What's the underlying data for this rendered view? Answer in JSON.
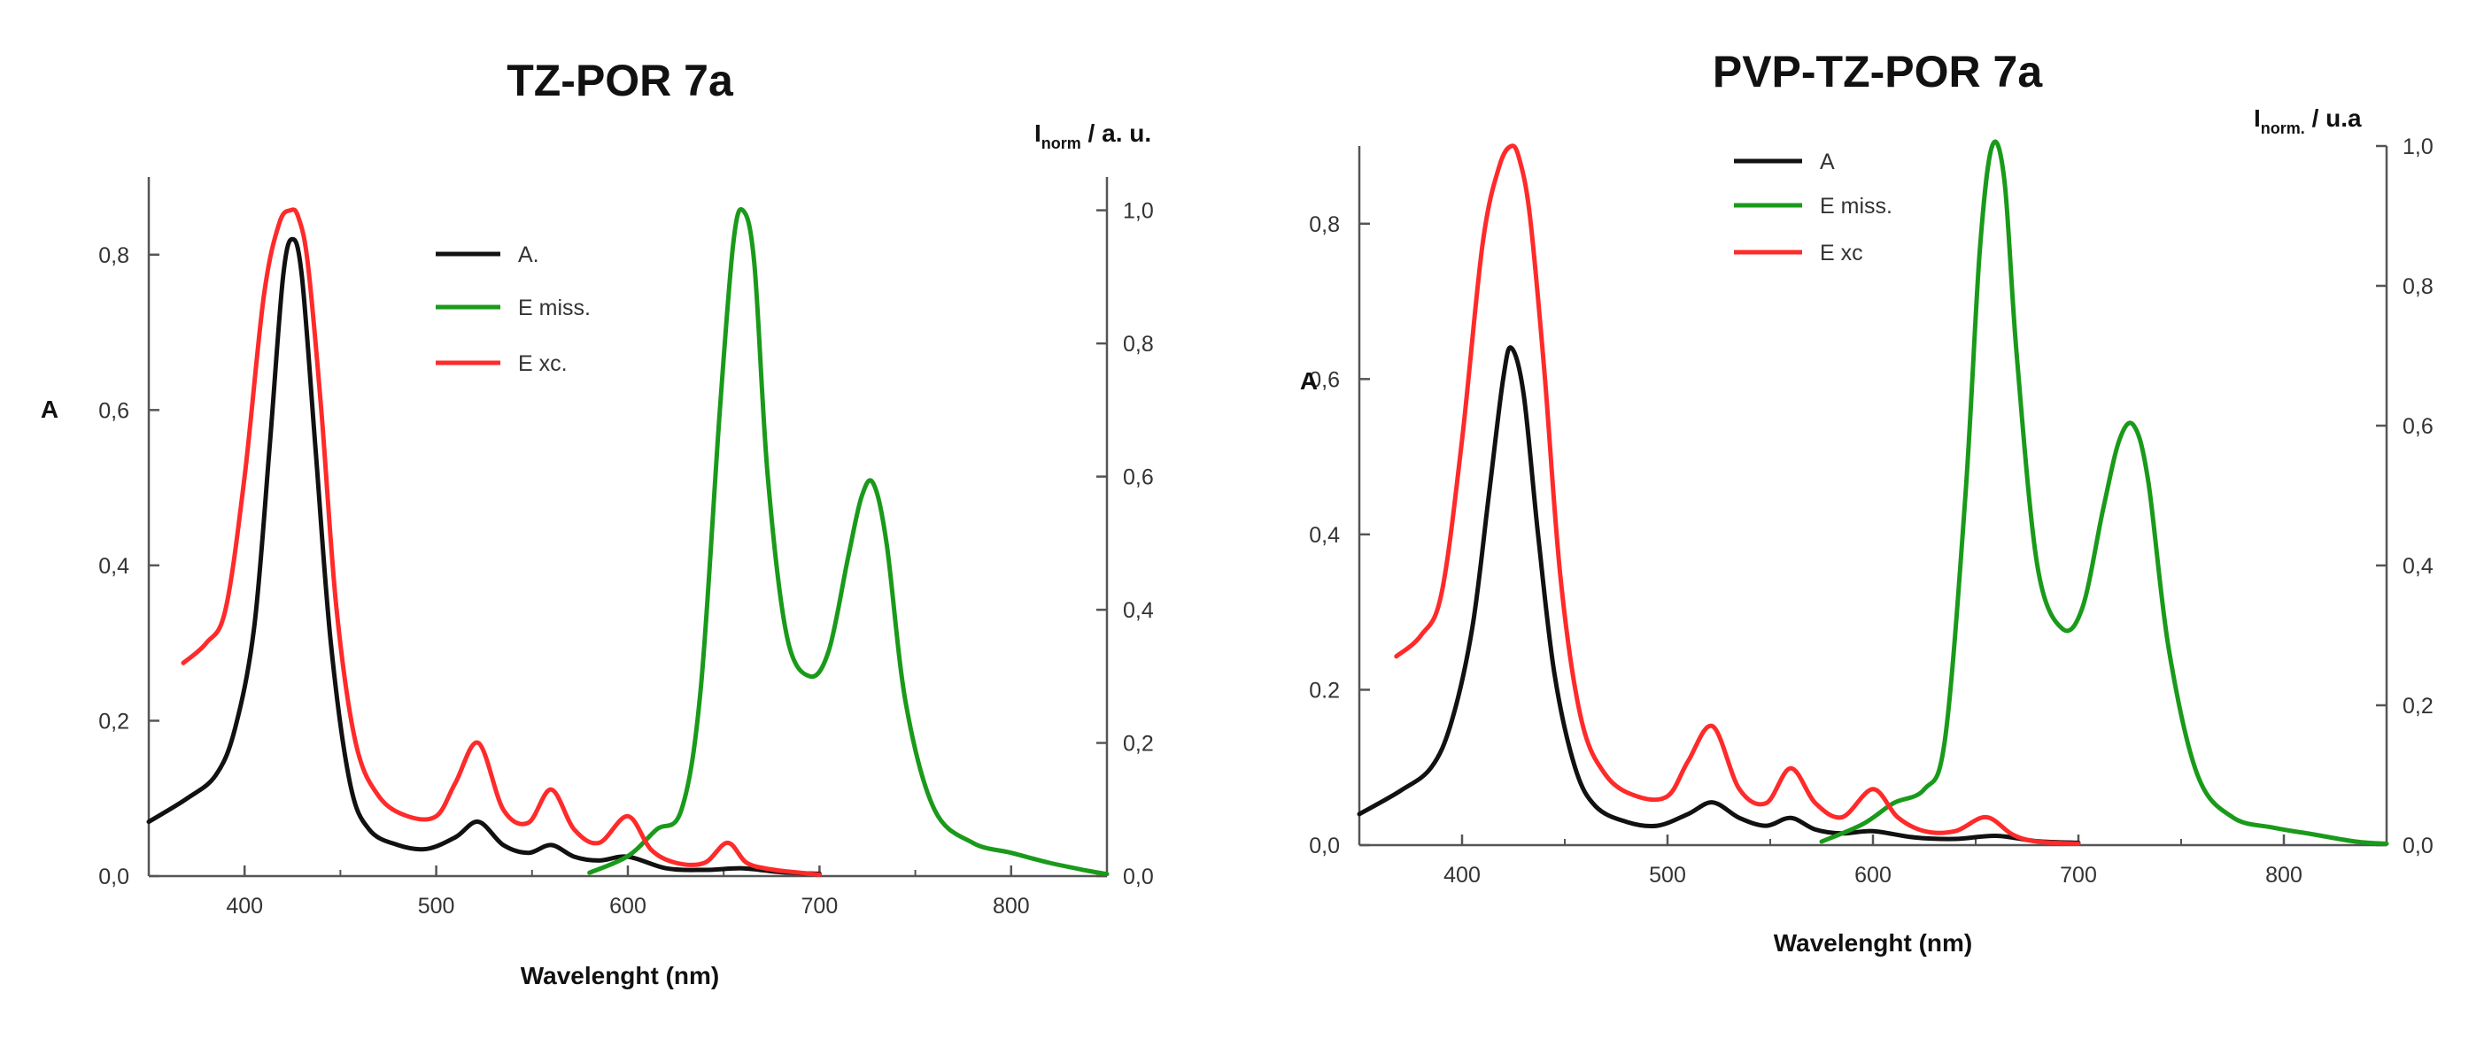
{
  "chart_data": [
    {
      "type": "line",
      "title": "TZ-POR 7a",
      "xlabel": "Wavelenght (nm)",
      "ylabel": "A",
      "y2label_main": "I",
      "y2label_sub": "norm",
      "y2label_rest": " / a. u.",
      "xlim": [
        350,
        850
      ],
      "ylim": [
        0,
        0.9
      ],
      "y2lim": [
        0,
        1.05
      ],
      "xticks": [
        400,
        500,
        600,
        700,
        800
      ],
      "xtick_labels": [
        "400",
        "500",
        "600",
        "700",
        "800"
      ],
      "yticks": [
        0,
        0.2,
        0.4,
        0.6,
        0.8
      ],
      "ytick_labels": [
        "0,0",
        "0,2",
        "0,4",
        "0,6",
        "0,8"
      ],
      "y2ticks": [
        0,
        0.2,
        0.4,
        0.6,
        0.8,
        1.0
      ],
      "y2tick_labels": [
        "0,0",
        "0,2",
        "0,4",
        "0,6",
        "0,8",
        "1,0"
      ],
      "series": [
        {
          "name": "A.",
          "axis": "left",
          "color": "#111111",
          "x": [
            350,
            370,
            385,
            395,
            405,
            413,
            420,
            425,
            430,
            437,
            445,
            455,
            465,
            480,
            495,
            510,
            522,
            535,
            548,
            560,
            572,
            585,
            600,
            620,
            640,
            660,
            680,
            700
          ],
          "y": [
            0.07,
            0.1,
            0.13,
            0.19,
            0.32,
            0.55,
            0.77,
            0.82,
            0.77,
            0.55,
            0.3,
            0.12,
            0.06,
            0.04,
            0.035,
            0.05,
            0.07,
            0.04,
            0.03,
            0.04,
            0.025,
            0.02,
            0.025,
            0.01,
            0.008,
            0.01,
            0.005,
            0.003
          ]
        },
        {
          "name": "E miss.",
          "axis": "right",
          "color": "#1a9a1a",
          "x": [
            580,
            600,
            615,
            628,
            638,
            648,
            655,
            660,
            666,
            673,
            683,
            695,
            705,
            715,
            722,
            728,
            735,
            745,
            760,
            780,
            800,
            820,
            840,
            850
          ],
          "y": [
            0.005,
            0.03,
            0.07,
            0.1,
            0.28,
            0.7,
            0.95,
            1.0,
            0.92,
            0.6,
            0.36,
            0.3,
            0.34,
            0.48,
            0.57,
            0.59,
            0.5,
            0.26,
            0.1,
            0.05,
            0.035,
            0.02,
            0.008,
            0.003
          ]
        },
        {
          "name": "E xc.",
          "axis": "right",
          "color": "#ff2a2a",
          "x": [
            368,
            380,
            390,
            400,
            410,
            418,
            424,
            428,
            433,
            440,
            448,
            458,
            470,
            485,
            500,
            510,
            522,
            535,
            548,
            560,
            572,
            585,
            600,
            612,
            625,
            640,
            652,
            662,
            675,
            690,
            700
          ],
          "y": [
            0.32,
            0.35,
            0.4,
            0.6,
            0.87,
            0.98,
            1.0,
            0.99,
            0.92,
            0.7,
            0.4,
            0.2,
            0.12,
            0.09,
            0.09,
            0.14,
            0.2,
            0.1,
            0.08,
            0.13,
            0.07,
            0.05,
            0.09,
            0.04,
            0.02,
            0.02,
            0.05,
            0.02,
            0.01,
            0.005,
            0.002
          ]
        }
      ]
    },
    {
      "type": "line",
      "title": "PVP-TZ-POR 7a",
      "xlabel": "Wavelenght (nm)",
      "ylabel": "A",
      "y2label_main": "I",
      "y2label_sub": "norm.",
      "y2label_rest": " / u.a",
      "xlim": [
        350,
        850
      ],
      "ylim": [
        0,
        0.9
      ],
      "y2lim": [
        0,
        1.0
      ],
      "xticks": [
        400,
        500,
        600,
        700,
        800
      ],
      "xtick_labels": [
        "400",
        "500",
        "600",
        "700",
        "800"
      ],
      "yticks": [
        0,
        0.2,
        0.4,
        0.6,
        0.8
      ],
      "ytick_labels": [
        "0,0",
        "0.2",
        "0,4",
        "0,6",
        "0,8"
      ],
      "y2ticks": [
        0,
        0.2,
        0.4,
        0.6,
        0.8,
        1.0
      ],
      "y2tick_labels": [
        "0,0",
        "0,2",
        "0,4",
        "0,6",
        "0,8",
        "1,0"
      ],
      "series": [
        {
          "name": "A",
          "axis": "left",
          "color": "#111111",
          "x": [
            350,
            370,
            385,
            395,
            405,
            413,
            420,
            424,
            430,
            437,
            445,
            455,
            465,
            480,
            495,
            510,
            522,
            535,
            548,
            560,
            572,
            585,
            600,
            620,
            640,
            660,
            680,
            700
          ],
          "y": [
            0.04,
            0.07,
            0.1,
            0.16,
            0.28,
            0.45,
            0.6,
            0.64,
            0.58,
            0.4,
            0.22,
            0.1,
            0.05,
            0.03,
            0.025,
            0.04,
            0.055,
            0.035,
            0.025,
            0.035,
            0.02,
            0.015,
            0.018,
            0.01,
            0.008,
            0.012,
            0.005,
            0.003
          ]
        },
        {
          "name": "E miss.",
          "axis": "right",
          "color": "#1a9a1a",
          "x": [
            575,
            595,
            610,
            625,
            635,
            645,
            652,
            658,
            664,
            670,
            680,
            692,
            702,
            712,
            720,
            727,
            734,
            744,
            758,
            775,
            795,
            815,
            835,
            850
          ],
          "y": [
            0.005,
            0.03,
            0.06,
            0.08,
            0.15,
            0.5,
            0.85,
            1.0,
            0.95,
            0.7,
            0.4,
            0.31,
            0.34,
            0.48,
            0.58,
            0.6,
            0.52,
            0.28,
            0.1,
            0.04,
            0.025,
            0.015,
            0.005,
            0.002
          ]
        },
        {
          "name": "E xc",
          "axis": "right",
          "color": "#ff2a2a",
          "x": [
            368,
            380,
            390,
            400,
            410,
            418,
            424,
            428,
            433,
            440,
            448,
            458,
            470,
            485,
            500,
            510,
            522,
            535,
            548,
            560,
            572,
            585,
            600,
            612,
            625,
            640,
            655,
            668,
            680,
            700
          ],
          "y": [
            0.27,
            0.3,
            0.36,
            0.58,
            0.86,
            0.97,
            1.0,
            0.98,
            0.9,
            0.68,
            0.38,
            0.18,
            0.1,
            0.07,
            0.07,
            0.12,
            0.17,
            0.08,
            0.06,
            0.11,
            0.06,
            0.04,
            0.08,
            0.04,
            0.02,
            0.02,
            0.04,
            0.015,
            0.005,
            0.002
          ]
        }
      ]
    }
  ]
}
